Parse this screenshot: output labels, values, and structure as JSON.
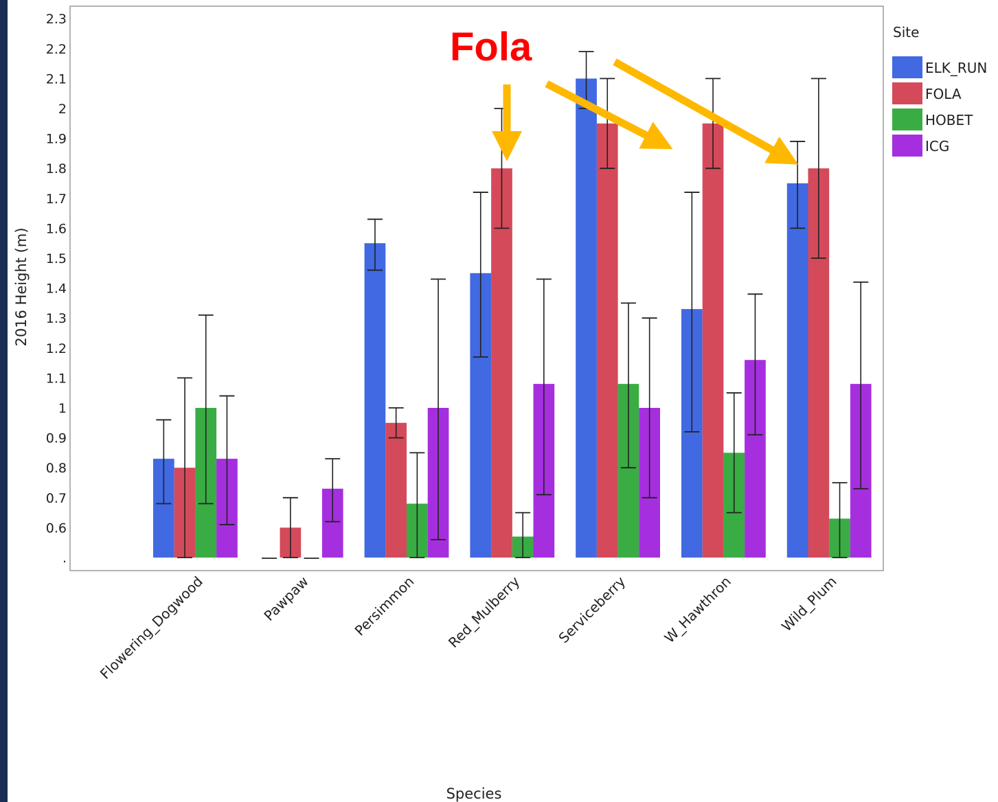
{
  "chart_data": {
    "type": "bar",
    "xlabel": "Species",
    "ylabel": "2016 Height (m)",
    "ylim": [
      0.5,
      2.32
    ],
    "y_ticks": [
      ".",
      "0.6",
      "0.7",
      "0.8",
      "0.9",
      "1",
      "1.1",
      "1.2",
      "1.3",
      "1.4",
      "1.5",
      "1.6",
      "1.7",
      "1.8",
      "1.9",
      "2",
      "2.1",
      "2.2",
      "2.3"
    ],
    "categories": [
      "Flowering_Dogwood",
      "Pawpaw",
      "Persimmon",
      "Red_Mulberry",
      "Serviceberry",
      "W_Hawthron",
      "Wild_Plum"
    ],
    "legend": {
      "title": "Site",
      "position": "right"
    },
    "series": [
      {
        "name": "ELK_RUN",
        "color": "#4169e1",
        "values": [
          0.83,
          0.5,
          1.55,
          1.45,
          2.1,
          1.33,
          1.75
        ],
        "err_low": [
          0.68,
          null,
          1.46,
          1.17,
          2.0,
          0.92,
          1.6
        ],
        "err_high": [
          0.96,
          null,
          1.63,
          1.72,
          2.19,
          1.72,
          1.89
        ]
      },
      {
        "name": "FOLA",
        "color": "#d44a5a",
        "values": [
          0.8,
          0.6,
          0.95,
          1.8,
          1.95,
          1.95,
          1.8
        ],
        "err_low": [
          0.5,
          0.5,
          0.9,
          1.6,
          1.8,
          1.8,
          1.5
        ],
        "err_high": [
          1.1,
          0.7,
          1.0,
          2.0,
          2.1,
          2.1,
          2.1
        ]
      },
      {
        "name": "HOBET",
        "color": "#3aac44",
        "values": [
          1.0,
          0.5,
          0.68,
          0.57,
          1.08,
          0.85,
          0.63
        ],
        "err_low": [
          0.68,
          null,
          0.5,
          0.5,
          0.8,
          0.65,
          0.5
        ],
        "err_high": [
          1.31,
          null,
          0.85,
          0.65,
          1.35,
          1.05,
          0.75
        ]
      },
      {
        "name": "ICG",
        "color": "#a52fde",
        "values": [
          0.83,
          0.73,
          1.0,
          1.08,
          1.0,
          1.16,
          1.08
        ],
        "err_low": [
          0.61,
          0.62,
          0.56,
          0.71,
          0.7,
          0.91,
          0.73
        ],
        "err_high": [
          1.04,
          0.83,
          1.43,
          1.43,
          1.3,
          1.38,
          1.42
        ]
      }
    ],
    "annotation": {
      "text": "Fola",
      "color": "#ff0000",
      "arrow_color": "#ffb800"
    }
  }
}
